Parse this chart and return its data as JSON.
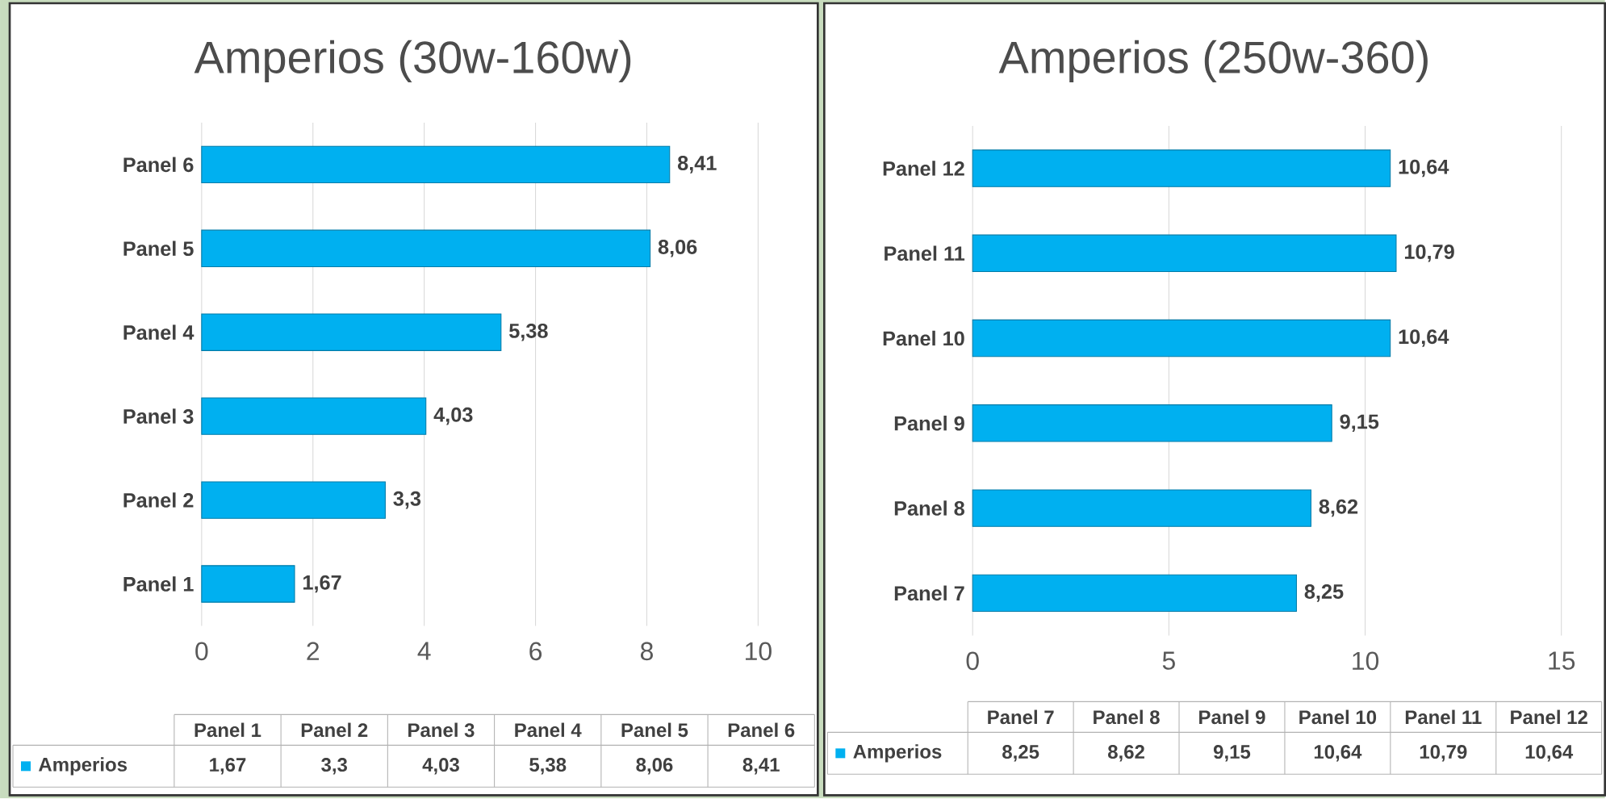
{
  "chart_data": [
    {
      "type": "bar",
      "orientation": "horizontal",
      "title": "Amperios (30w-160w)",
      "categories": [
        "Panel 6",
        "Panel 5",
        "Panel 4",
        "Panel 3",
        "Panel 2",
        "Panel 1"
      ],
      "series": [
        {
          "name": "Amperios",
          "color": "#00b0f0",
          "values": [
            8.41,
            8.06,
            5.38,
            4.03,
            3.3,
            1.67
          ],
          "value_labels": [
            "8,41",
            "8,06",
            "5,38",
            "4,03",
            "3,3",
            "1,67"
          ]
        }
      ],
      "xlim": [
        0,
        10
      ],
      "xticks": [
        0,
        2,
        4,
        6,
        8,
        10
      ],
      "grid": "x",
      "legend": "bottom"
    },
    {
      "type": "bar",
      "orientation": "horizontal",
      "title": "Amperios (250w-360)",
      "categories": [
        "Panel 12",
        "Panel 11",
        "Panel 10",
        "Panel 9",
        "Panel 8",
        "Panel 7"
      ],
      "series": [
        {
          "name": "Amperios",
          "color": "#00b0f0",
          "values": [
            10.64,
            10.79,
            10.64,
            9.15,
            8.62,
            8.25
          ],
          "value_labels": [
            "10,64",
            "10,79",
            "10,64",
            "9,15",
            "8,62",
            "8,25"
          ]
        }
      ],
      "xlim": [
        0,
        15
      ],
      "xticks": [
        0,
        5,
        10,
        15
      ],
      "grid": "x",
      "legend": "bottom"
    }
  ]
}
